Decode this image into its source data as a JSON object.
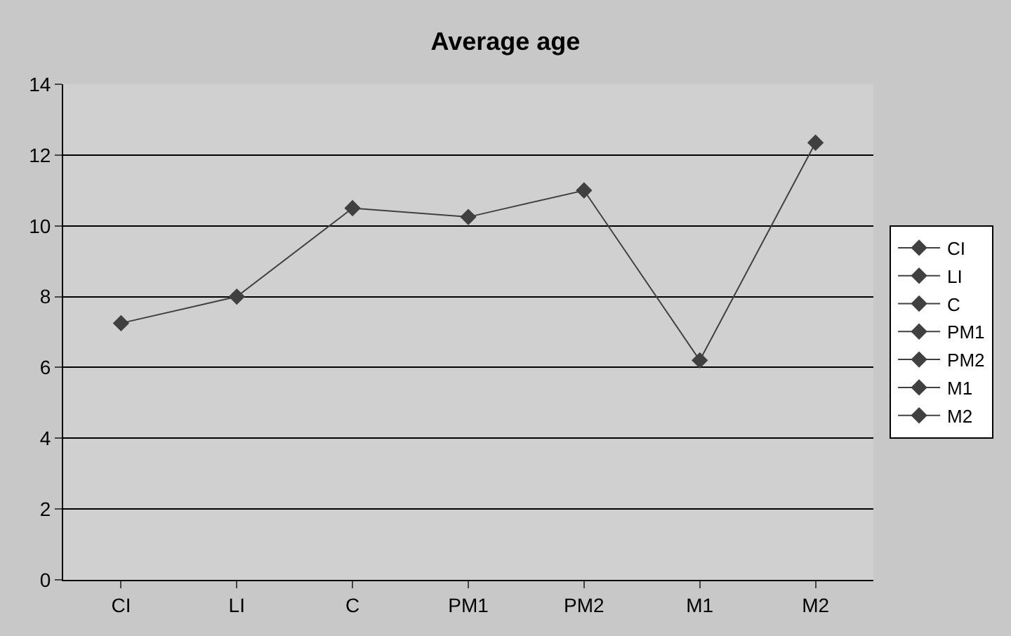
{
  "chart_data": {
    "type": "line",
    "title": "Average age",
    "categories": [
      "CI",
      "LI",
      "C",
      "PM1",
      "PM2",
      "M1",
      "M2"
    ],
    "series": [
      {
        "color": "#404040",
        "marker": "none",
        "values": [
          7.25,
          8.0,
          10.5,
          10.25,
          11.0,
          6.2,
          12.35
        ]
      },
      {
        "name": "CI",
        "color": "#404040",
        "values": [
          7.25,
          null,
          null,
          null,
          null,
          null,
          null
        ]
      },
      {
        "name": "LI",
        "color": "#404040",
        "values": [
          null,
          8.0,
          null,
          null,
          null,
          null,
          null
        ]
      },
      {
        "name": "C",
        "color": "#404040",
        "values": [
          null,
          null,
          10.5,
          null,
          null,
          null,
          null
        ]
      },
      {
        "name": "PM1",
        "color": "#404040",
        "values": [
          null,
          null,
          null,
          10.25,
          null,
          null,
          null
        ]
      },
      {
        "name": "PM2",
        "color": "#404040",
        "values": [
          null,
          null,
          null,
          null,
          11.0,
          null,
          null
        ]
      },
      {
        "name": "M1",
        "color": "#404040",
        "values": [
          null,
          null,
          null,
          null,
          null,
          6.2,
          null
        ]
      },
      {
        "name": "M2",
        "color": "#404040",
        "values": [
          null,
          null,
          null,
          null,
          null,
          null,
          12.35
        ]
      }
    ],
    "ylim": [
      0,
      14
    ],
    "yticks": [
      0,
      2,
      4,
      6,
      8,
      10,
      12,
      14
    ],
    "grid": "y",
    "legend": "right",
    "marker": "diamond",
    "line_style": "solid"
  }
}
